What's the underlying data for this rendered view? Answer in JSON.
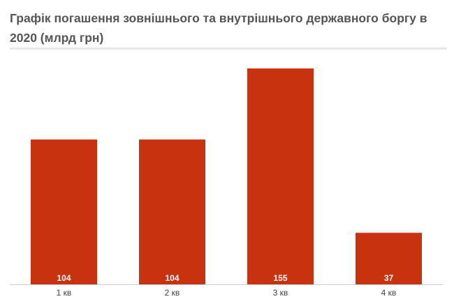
{
  "chart_data": {
    "type": "bar",
    "title": "Графік погашення зовнішнього та внутрішнього державного боргу в 2020 (млрд грн)",
    "categories": [
      "1 кв",
      "2 кв",
      "3 кв",
      "4 кв"
    ],
    "values": [
      104,
      104,
      155,
      37
    ],
    "ylim": [
      0,
      163
    ],
    "grid": false,
    "colors": {
      "bar": "#c8320e",
      "value_label": "#ffffff"
    }
  }
}
